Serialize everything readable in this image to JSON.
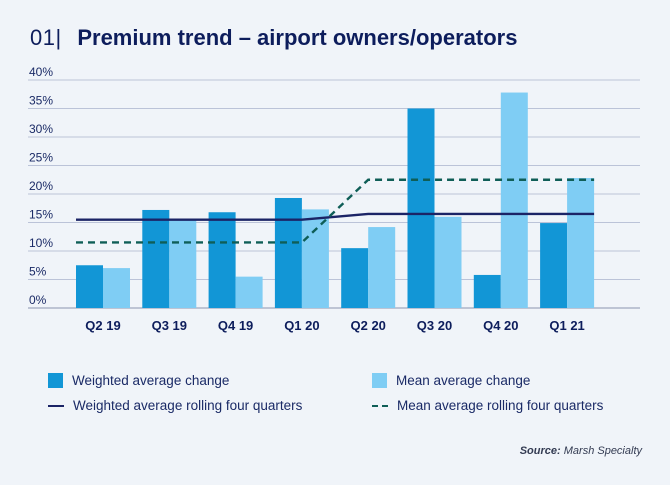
{
  "title": {
    "number": "01",
    "separator": "|",
    "text": "Premium trend – airport owners/operators"
  },
  "chart_data": {
    "type": "bar",
    "categories": [
      "Q2 19",
      "Q3 19",
      "Q4 19",
      "Q1 20",
      "Q2 20",
      "Q3 20",
      "Q4 20",
      "Q1 21"
    ],
    "series": [
      {
        "name": "Weighted average change",
        "kind": "bar",
        "color": "#1296d6",
        "values": [
          7.5,
          17.2,
          16.8,
          19.3,
          10.5,
          35.0,
          5.8,
          14.9
        ]
      },
      {
        "name": "Mean average change",
        "kind": "bar",
        "color": "#7fcdf4",
        "values": [
          7.0,
          15.5,
          5.5,
          17.3,
          14.2,
          16.0,
          37.8,
          22.8
        ]
      },
      {
        "name": "Weighted average rolling four quarters",
        "kind": "line",
        "color": "#1b2466",
        "dashed": false,
        "values": [
          15.5,
          15.5,
          15.5,
          15.5,
          16.5,
          16.5,
          16.5,
          16.5
        ]
      },
      {
        "name": "Mean average rolling four quarters",
        "kind": "line",
        "color": "#0f5e57",
        "dashed": true,
        "values": [
          11.5,
          11.5,
          11.5,
          11.5,
          22.5,
          22.5,
          22.5,
          22.5
        ]
      }
    ],
    "yticks": [
      "0%",
      "5%",
      "10%",
      "15%",
      "20%",
      "25%",
      "30%",
      "35%",
      "40%"
    ],
    "ylim": [
      0,
      40
    ],
    "xlabel": "",
    "ylabel": "",
    "grid": true,
    "legend": "bottom"
  },
  "legend": {
    "items": [
      {
        "label": "Weighted average change"
      },
      {
        "label": "Mean average change"
      },
      {
        "label": "Weighted average rolling four quarters"
      },
      {
        "label": "Mean average rolling four quarters"
      }
    ]
  },
  "source": {
    "label": "Source:",
    "text": " Marsh Specialty"
  }
}
